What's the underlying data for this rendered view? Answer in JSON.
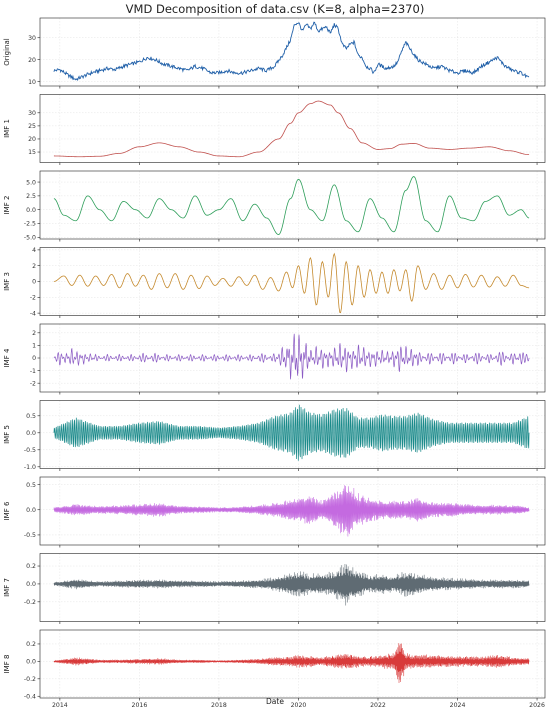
{
  "chart_data": {
    "type": "line",
    "title": "VMD Decomposition of data.csv (K=8, alpha=2370)",
    "xlabel": "Date",
    "x_ticks": [
      "2014",
      "2016",
      "2018",
      "2020",
      "2022",
      "2024",
      "2026"
    ],
    "x_range": [
      2013.5,
      2026.2
    ],
    "grid": true,
    "panels": [
      {
        "name": "Original",
        "color": "#1f5fa8",
        "ylim": [
          8,
          39
        ],
        "yticks": [
          {
            "v": 10,
            "label": "10"
          },
          {
            "v": 20,
            "label": "20"
          },
          {
            "v": 30,
            "label": "30"
          }
        ],
        "x": [
          2013.85,
          2014.0,
          2014.2,
          2014.4,
          2014.6,
          2014.8,
          2015.0,
          2015.2,
          2015.4,
          2015.6,
          2015.8,
          2016.0,
          2016.2,
          2016.4,
          2016.6,
          2016.8,
          2017.0,
          2017.2,
          2017.4,
          2017.6,
          2017.8,
          2018.0,
          2018.2,
          2018.4,
          2018.6,
          2018.8,
          2019.0,
          2019.2,
          2019.4,
          2019.6,
          2019.8,
          2019.9,
          2020.0,
          2020.1,
          2020.2,
          2020.3,
          2020.4,
          2020.5,
          2020.6,
          2020.7,
          2020.8,
          2020.9,
          2021.0,
          2021.1,
          2021.2,
          2021.3,
          2021.4,
          2021.5,
          2021.6,
          2021.7,
          2021.8,
          2021.9,
          2022.0,
          2022.2,
          2022.4,
          2022.5,
          2022.6,
          2022.7,
          2022.8,
          2023.0,
          2023.2,
          2023.4,
          2023.6,
          2023.8,
          2024.0,
          2024.2,
          2024.4,
          2024.6,
          2024.8,
          2025.0,
          2025.2,
          2025.4,
          2025.6,
          2025.8
        ],
        "values": [
          15,
          15.5,
          13,
          11,
          12.5,
          14,
          15,
          16,
          15.5,
          17,
          18,
          19,
          21,
          20,
          18,
          17,
          16,
          15,
          17,
          16,
          14,
          14,
          15,
          14,
          14,
          15,
          16,
          15,
          17,
          22,
          29,
          36,
          37,
          33,
          36,
          34,
          37,
          33,
          34,
          35,
          32,
          36,
          34,
          27,
          25,
          27,
          28,
          22,
          21,
          17,
          16,
          14,
          18,
          16,
          17,
          19,
          24,
          28,
          25,
          20,
          18,
          16,
          17,
          15,
          14,
          15,
          14,
          17,
          19,
          21,
          17,
          15,
          14,
          11.5
        ]
      },
      {
        "name": "IMF 1",
        "color": "#c0504d",
        "ylim": [
          11,
          37
        ],
        "yticks": [
          {
            "v": 15,
            "label": "15"
          },
          {
            "v": 20,
            "label": "20"
          },
          {
            "v": 25,
            "label": "25"
          },
          {
            "v": 30,
            "label": "30"
          }
        ],
        "x": [
          2013.85,
          2014.5,
          2015.0,
          2015.5,
          2016.0,
          2016.5,
          2017.0,
          2017.5,
          2018.0,
          2018.5,
          2019.0,
          2019.5,
          2019.8,
          2020.0,
          2020.3,
          2020.5,
          2020.8,
          2021.0,
          2021.3,
          2021.6,
          2022.0,
          2022.3,
          2022.6,
          2022.9,
          2023.3,
          2023.8,
          2024.3,
          2024.8,
          2025.3,
          2025.8
        ],
        "values": [
          13.5,
          13.2,
          13.4,
          14.5,
          17,
          18.5,
          17,
          15,
          13.5,
          13.2,
          15,
          20,
          26,
          30,
          33.5,
          34.5,
          33,
          30,
          24,
          18.5,
          16,
          16.3,
          18,
          18.3,
          16.5,
          16,
          16.5,
          17,
          15.5,
          14
        ]
      },
      {
        "name": "IMF 2",
        "color": "#2e9e5a",
        "ylim": [
          -5.3,
          7
        ],
        "yticks": [
          {
            "v": -5,
            "label": "-5.0"
          },
          {
            "v": -2.5,
            "label": "-2.5"
          },
          {
            "v": 0,
            "label": "0.0"
          },
          {
            "v": 2.5,
            "label": "2.5"
          },
          {
            "v": 5,
            "label": "5.0"
          }
        ],
        "x": [
          2013.85,
          2014.1,
          2014.4,
          2014.7,
          2015.0,
          2015.3,
          2015.6,
          2015.9,
          2016.2,
          2016.5,
          2016.8,
          2017.1,
          2017.4,
          2017.7,
          2018.0,
          2018.3,
          2018.6,
          2018.9,
          2019.2,
          2019.5,
          2019.8,
          2020.0,
          2020.3,
          2020.6,
          2020.9,
          2021.2,
          2021.5,
          2021.8,
          2022.1,
          2022.4,
          2022.7,
          2022.9,
          2023.2,
          2023.5,
          2023.8,
          2024.1,
          2024.4,
          2024.7,
          2025.0,
          2025.3,
          2025.6,
          2025.8
        ],
        "values": [
          2,
          -1,
          -2,
          2.5,
          0,
          -2,
          1.5,
          0,
          -1.5,
          2,
          0,
          -1.5,
          2.5,
          -1,
          0,
          2,
          -2,
          1,
          -1.5,
          -4.5,
          2,
          5.5,
          0,
          -2,
          4.5,
          -2,
          -4,
          2,
          -1.5,
          -4,
          3.5,
          6,
          -2,
          -4,
          2.5,
          -1.5,
          -2,
          1.5,
          2.5,
          -1,
          0,
          -1.5
        ]
      },
      {
        "name": "IMF 3",
        "color": "#c58a2e",
        "ylim": [
          -4.3,
          4.3
        ],
        "yticks": [
          {
            "v": -4,
            "label": "-4"
          },
          {
            "v": -2,
            "label": "-2"
          },
          {
            "v": 0,
            "label": "0"
          },
          {
            "v": 2,
            "label": "2"
          },
          {
            "v": 4,
            "label": "4"
          }
        ],
        "x": [
          2013.85,
          2014.1,
          2014.3,
          2014.5,
          2014.7,
          2014.9,
          2015.1,
          2015.3,
          2015.5,
          2015.7,
          2015.9,
          2016.1,
          2016.3,
          2016.5,
          2016.7,
          2016.9,
          2017.1,
          2017.3,
          2017.5,
          2017.7,
          2017.9,
          2018.1,
          2018.3,
          2018.5,
          2018.7,
          2018.9,
          2019.1,
          2019.3,
          2019.5,
          2019.7,
          2019.85,
          2020.0,
          2020.15,
          2020.3,
          2020.45,
          2020.6,
          2020.75,
          2020.9,
          2021.05,
          2021.2,
          2021.35,
          2021.5,
          2021.65,
          2021.8,
          2021.95,
          2022.1,
          2022.25,
          2022.4,
          2022.55,
          2022.7,
          2022.85,
          2023.0,
          2023.2,
          2023.4,
          2023.6,
          2023.8,
          2024.0,
          2024.2,
          2024.4,
          2024.6,
          2024.8,
          2025.0,
          2025.2,
          2025.4,
          2025.6,
          2025.8
        ],
        "values": [
          0,
          0.7,
          -0.5,
          0.8,
          -0.6,
          0.7,
          -0.5,
          0.9,
          -0.8,
          1,
          -0.6,
          0.8,
          -1,
          1,
          -0.8,
          1,
          -1,
          0.8,
          -0.9,
          0.7,
          -0.5,
          0.4,
          -0.6,
          0.6,
          -0.5,
          0.8,
          -1,
          0.5,
          -1.2,
          1.2,
          -0.8,
          2,
          -1.5,
          3,
          -3,
          2.5,
          -2,
          3.5,
          -4,
          2.5,
          -3,
          2,
          -2,
          1.5,
          -1.5,
          1.2,
          -1.5,
          1.5,
          -1.2,
          1.5,
          -2.5,
          2,
          -1,
          1,
          -1,
          0.8,
          -0.8,
          0.9,
          -0.7,
          0.8,
          -0.7,
          0.6,
          -0.6,
          0.8,
          -0.5,
          -0.8
        ]
      },
      {
        "name": "IMF 4",
        "color": "#8b5bc4",
        "ylim": [
          -2.7,
          2.7
        ],
        "yticks": [
          {
            "v": -2,
            "label": "-2"
          },
          {
            "v": -1,
            "label": "-1"
          },
          {
            "v": 0,
            "label": "0"
          },
          {
            "v": 1,
            "label": "1"
          },
          {
            "v": 2,
            "label": "2"
          }
        ],
        "x": [
          2013.85,
          2014.0,
          2014.15,
          2014.3,
          2014.45,
          2014.6,
          2014.75,
          2014.9,
          2015.2,
          2015.5,
          2015.8,
          2016.1,
          2016.4,
          2016.7,
          2017.0,
          2017.3,
          2017.6,
          2017.9,
          2018.2,
          2018.5,
          2018.8,
          2019.1,
          2019.4,
          2019.6,
          2019.7,
          2019.8,
          2019.9,
          2020.0,
          2020.1,
          2020.2,
          2020.3,
          2020.45,
          2020.6,
          2020.75,
          2020.9,
          2021.05,
          2021.2,
          2021.35,
          2021.5,
          2021.65,
          2021.8,
          2021.95,
          2022.1,
          2022.25,
          2022.4,
          2022.55,
          2022.7,
          2022.85,
          2023.0,
          2023.3,
          2023.6,
          2023.9,
          2024.2,
          2024.5,
          2024.8,
          2025.1,
          2025.4,
          2025.6,
          2025.8
        ],
        "values": [
          0,
          0.6,
          -0.5,
          0.8,
          -0.7,
          0.5,
          -0.4,
          0.3,
          -0.3,
          0.3,
          -0.3,
          0.4,
          -0.4,
          0.3,
          -0.3,
          0.3,
          -0.3,
          0.3,
          -0.3,
          0.3,
          -0.3,
          0.4,
          -0.4,
          0.9,
          -1.2,
          1.8,
          -2.3,
          2.5,
          -1.8,
          1.5,
          -0.8,
          1,
          -1,
          0.8,
          -1,
          1.3,
          -1.3,
          1,
          -1.2,
          1,
          -0.8,
          0.8,
          -0.7,
          0.6,
          -0.8,
          1.3,
          -1,
          0.9,
          -0.6,
          0.5,
          -0.5,
          0.5,
          -0.4,
          0.5,
          -0.4,
          0.6,
          -0.5,
          0.5,
          0.2
        ]
      },
      {
        "name": "IMF 5",
        "color": "#1a8a8a",
        "ylim": [
          -1.05,
          0.95
        ],
        "yticks": [
          {
            "v": -1,
            "label": "-1.0"
          },
          {
            "v": -0.5,
            "label": "-0.5"
          },
          {
            "v": 0,
            "label": "0.0"
          },
          {
            "v": 0.5,
            "label": "0.5"
          }
        ],
        "x": [
          2013.85,
          2014.4,
          2015.0,
          2015.5,
          2016.0,
          2016.5,
          2017.0,
          2017.5,
          2018.0,
          2018.5,
          2019.0,
          2019.4,
          2019.8,
          2020.0,
          2020.3,
          2020.6,
          2020.9,
          2021.2,
          2021.5,
          2021.8,
          2022.1,
          2022.4,
          2022.7,
          2023.0,
          2023.4,
          2023.8,
          2024.2,
          2024.6,
          2025.0,
          2025.4,
          2025.8
        ],
        "values": [
          0.15,
          0.45,
          0.2,
          0.2,
          0.3,
          0.35,
          0.2,
          0.2,
          0.15,
          0.2,
          0.3,
          0.5,
          0.6,
          0.85,
          0.6,
          0.55,
          0.7,
          0.75,
          0.45,
          0.45,
          0.55,
          0.5,
          0.5,
          0.6,
          0.4,
          0.3,
          0.3,
          0.3,
          0.3,
          0.3,
          0.5
        ]
      },
      {
        "name": "IMF 6",
        "color": "#c46ae0",
        "ylim": [
          -0.7,
          0.65
        ],
        "yticks": [
          {
            "v": -0.5,
            "label": "-0.5"
          },
          {
            "v": 0,
            "label": "0.0"
          },
          {
            "v": 0.5,
            "label": "0.5"
          }
        ],
        "x": [
          2013.85,
          2014.4,
          2015.0,
          2015.5,
          2016.0,
          2016.5,
          2017.0,
          2017.5,
          2018.0,
          2018.5,
          2019.0,
          2019.4,
          2019.8,
          2020.0,
          2020.3,
          2020.6,
          2020.9,
          2021.2,
          2021.5,
          2021.8,
          2022.1,
          2022.4,
          2022.7,
          2023.0,
          2023.4,
          2023.8,
          2024.2,
          2024.6,
          2025.0,
          2025.4,
          2025.8
        ],
        "values": [
          0.05,
          0.12,
          0.08,
          0.1,
          0.12,
          0.15,
          0.08,
          0.07,
          0.05,
          0.06,
          0.1,
          0.15,
          0.22,
          0.25,
          0.3,
          0.2,
          0.35,
          0.6,
          0.35,
          0.25,
          0.2,
          0.18,
          0.2,
          0.25,
          0.15,
          0.15,
          0.12,
          0.1,
          0.1,
          0.1,
          0.05
        ]
      },
      {
        "name": "IMF 7",
        "color": "#5f6b73",
        "ylim": [
          -0.42,
          0.34
        ],
        "yticks": [
          {
            "v": -0.2,
            "label": "-0.2"
          },
          {
            "v": 0,
            "label": "0.0"
          },
          {
            "v": 0.2,
            "label": "0.2"
          }
        ],
        "x": [
          2013.85,
          2014.4,
          2015.0,
          2015.5,
          2016.0,
          2016.5,
          2017.0,
          2017.5,
          2018.0,
          2018.5,
          2019.0,
          2019.4,
          2019.8,
          2020.0,
          2020.3,
          2020.6,
          2020.9,
          2021.2,
          2021.5,
          2021.8,
          2022.1,
          2022.4,
          2022.7,
          2023.0,
          2023.4,
          2023.8,
          2024.2,
          2024.6,
          2025.0,
          2025.4,
          2025.8
        ],
        "values": [
          0.02,
          0.06,
          0.03,
          0.04,
          0.05,
          0.05,
          0.04,
          0.04,
          0.03,
          0.04,
          0.05,
          0.08,
          0.12,
          0.15,
          0.12,
          0.12,
          0.15,
          0.25,
          0.15,
          0.1,
          0.12,
          0.1,
          0.15,
          0.12,
          0.08,
          0.07,
          0.06,
          0.05,
          0.05,
          0.05,
          0.04
        ]
      },
      {
        "name": "IMF 8",
        "color": "#d83a3a",
        "ylim": [
          -0.42,
          0.36
        ],
        "yticks": [
          {
            "v": -0.4,
            "label": "-0.4"
          },
          {
            "v": -0.2,
            "label": "-0.2"
          },
          {
            "v": 0,
            "label": "0.0"
          },
          {
            "v": 0.2,
            "label": "0.2"
          }
        ],
        "x": [
          2013.85,
          2014.4,
          2015.0,
          2015.5,
          2016.0,
          2016.5,
          2017.0,
          2017.5,
          2018.0,
          2018.5,
          2019.0,
          2019.4,
          2019.8,
          2020.0,
          2020.3,
          2020.6,
          2020.9,
          2021.2,
          2021.5,
          2021.8,
          2022.1,
          2022.4,
          2022.55,
          2022.7,
          2023.0,
          2023.4,
          2023.8,
          2024.2,
          2024.6,
          2025.0,
          2025.4,
          2025.8
        ],
        "values": [
          0.01,
          0.05,
          0.02,
          0.02,
          0.03,
          0.04,
          0.02,
          0.02,
          0.01,
          0.02,
          0.03,
          0.05,
          0.06,
          0.08,
          0.07,
          0.05,
          0.08,
          0.1,
          0.07,
          0.06,
          0.08,
          0.1,
          0.33,
          0.1,
          0.08,
          0.08,
          0.07,
          0.06,
          0.06,
          0.08,
          0.05,
          0.04
        ]
      }
    ]
  }
}
